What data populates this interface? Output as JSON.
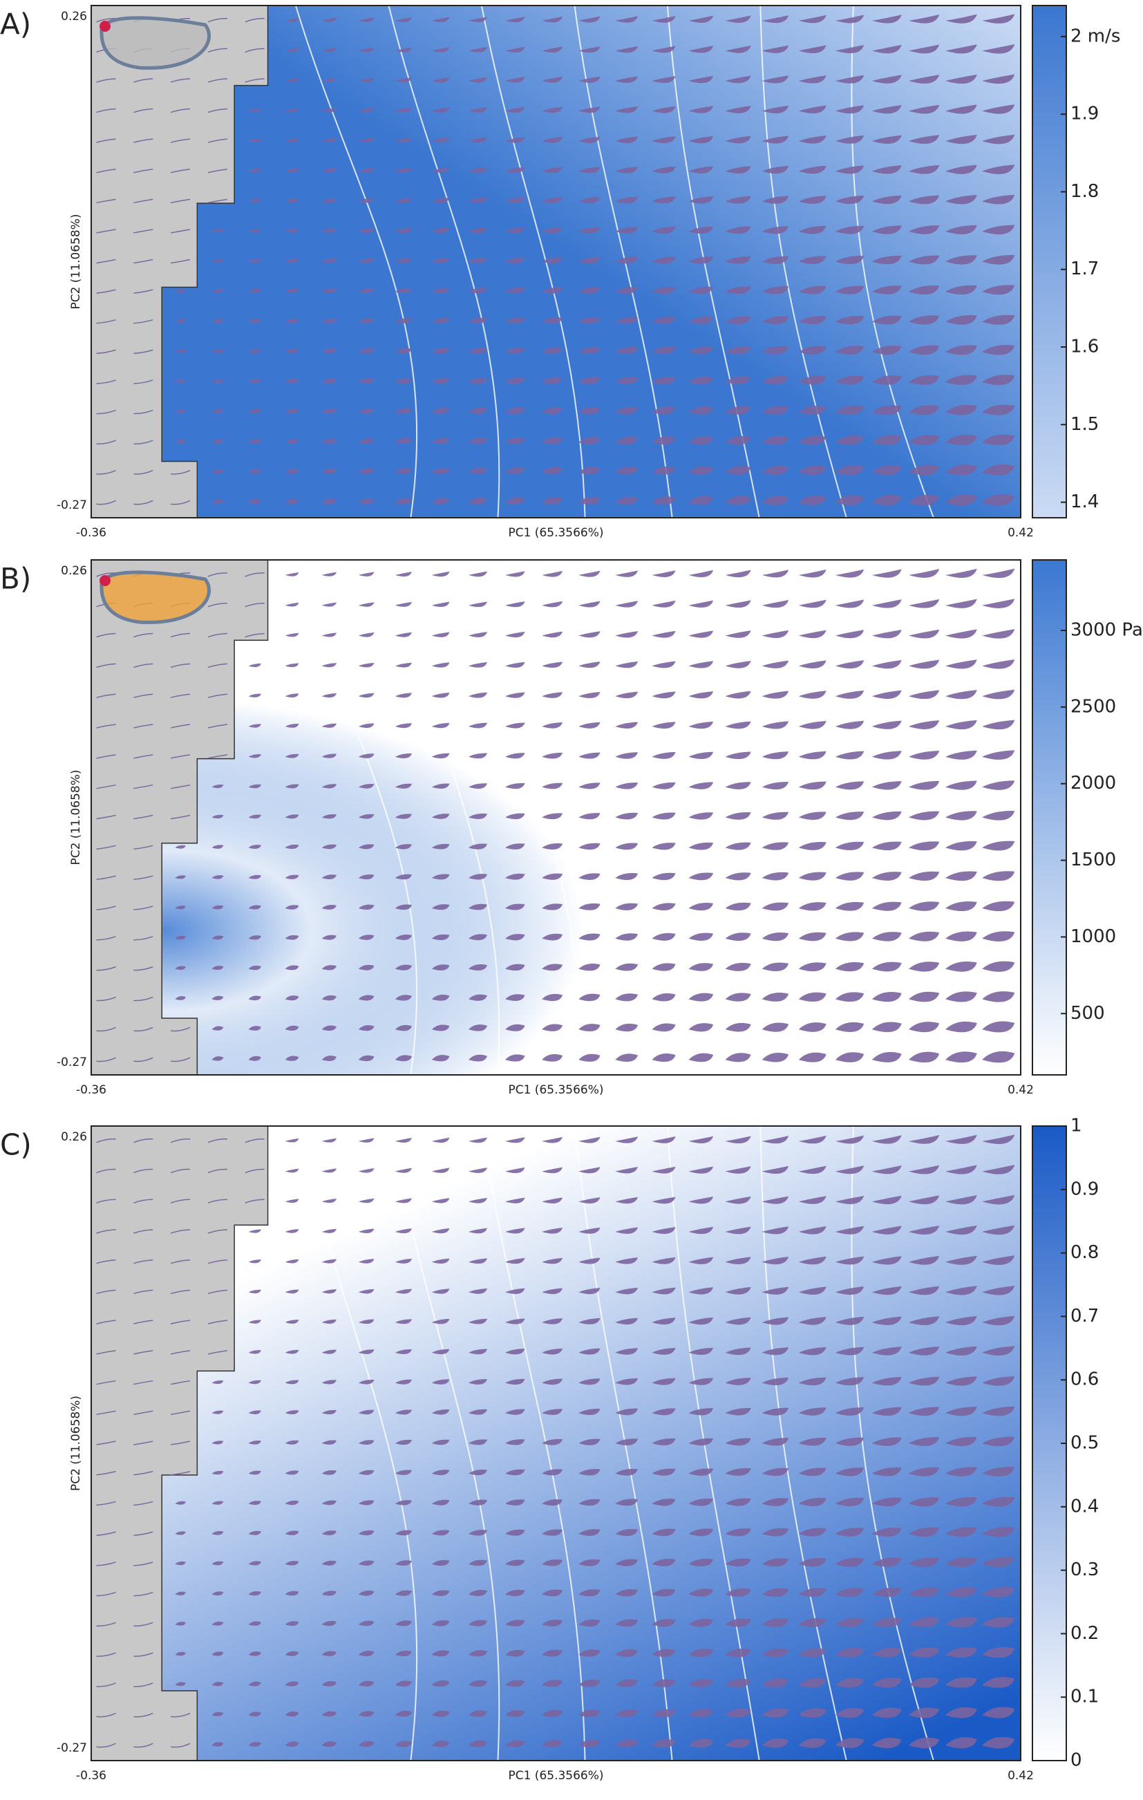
{
  "chart_data": [
    {
      "type": "contour",
      "panel_label": "A)",
      "x_label": "PC1 (65.3566%)",
      "y_label": "PC2 (11.0658%)",
      "xlim": [
        -0.36,
        0.42
      ],
      "xticks": [
        -0.36,
        0.42
      ],
      "ylim": [
        -0.27,
        0.26
      ],
      "yticks": [
        -0.27,
        0.26
      ],
      "colorbar": {
        "lim": [
          1.38,
          2.04
        ],
        "ticks": [
          {
            "value": 2,
            "label": "2 m/s"
          },
          1.9,
          1.8,
          1.7,
          1.6,
          1.5,
          1.4
        ],
        "colors": [
          "#cbdbf4",
          "#3b77d0"
        ]
      }
    },
    {
      "type": "contour",
      "panel_label": "B)",
      "x_label": "PC1 (65.3566%)",
      "y_label": "PC2 (11.0658%)",
      "xlim": [
        -0.36,
        0.42
      ],
      "xticks": [
        -0.36,
        0.42
      ],
      "ylim": [
        -0.27,
        0.26
      ],
      "yticks": [
        -0.27,
        0.26
      ],
      "colorbar": {
        "lim": [
          100,
          3460
        ],
        "ticks": [
          {
            "value": 3000,
            "label": "3000 Pa"
          },
          2500,
          2000,
          1500,
          1000,
          500
        ],
        "colors": [
          "#ffffff",
          "#3b78d2"
        ]
      }
    },
    {
      "type": "contour",
      "panel_label": "C)",
      "x_label": "PC1 (65.3566%)",
      "y_label": "PC2 (11.0658%)",
      "xlim": [
        -0.36,
        0.42
      ],
      "xticks": [
        -0.36,
        0.42
      ],
      "ylim": [
        -0.27,
        0.26
      ],
      "yticks": [
        -0.27,
        0.26
      ],
      "colorbar": {
        "lim": [
          0,
          1
        ],
        "ticks": [
          1,
          0.9,
          0.8,
          0.7,
          0.6,
          0.5,
          0.4,
          0.3,
          0.2,
          0.1,
          0
        ],
        "colors": [
          "#ffffff",
          "#1a5ac6"
        ]
      }
    }
  ]
}
